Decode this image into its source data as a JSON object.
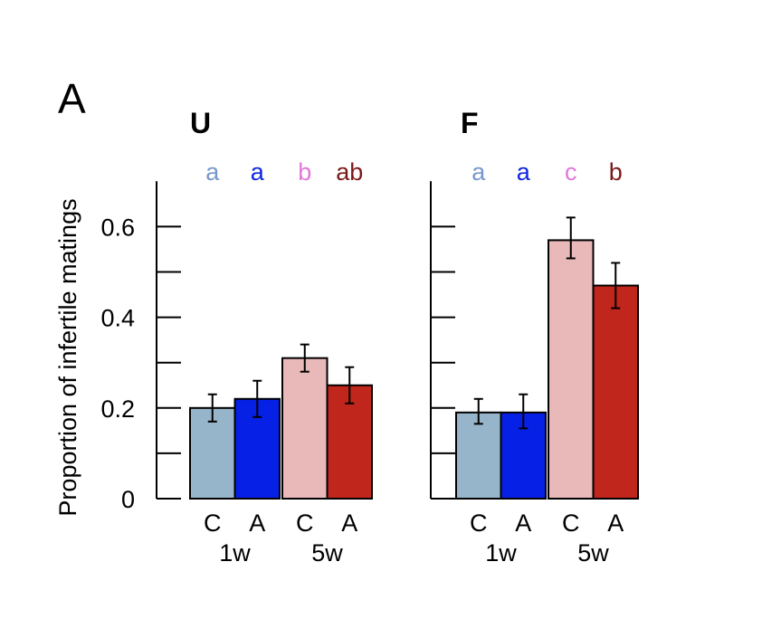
{
  "panel_letter": "A",
  "ylabel": "Proportion of infertile matings",
  "chart_data": [
    {
      "type": "bar",
      "title": "U",
      "categories": [
        "C",
        "A",
        "C",
        "A"
      ],
      "groups": [
        "1w",
        "5w"
      ],
      "values": [
        0.2,
        0.22,
        0.31,
        0.25
      ],
      "error_low": [
        0.17,
        0.18,
        0.28,
        0.21
      ],
      "error_high": [
        0.23,
        0.26,
        0.34,
        0.29
      ],
      "significance_letters": [
        "a",
        "a",
        "b",
        "ab"
      ],
      "bar_colors": [
        "#97b5ca",
        "#0620e6",
        "#e8b9b8",
        "#c0261c"
      ],
      "letter_colors": [
        "#7797cc",
        "#1026e0",
        "#e079d9",
        "#7a1a18"
      ],
      "ylabel": "Proportion of infertile matings",
      "ylim": [
        0,
        0.7
      ],
      "yticks": [
        0,
        0.2,
        0.4,
        0.6
      ],
      "ytick_labels": [
        "0",
        "0.2",
        "0.4",
        "0.6"
      ],
      "grid": false
    },
    {
      "type": "bar",
      "title": "F",
      "categories": [
        "C",
        "A",
        "C",
        "A"
      ],
      "groups": [
        "1w",
        "5w"
      ],
      "values": [
        0.19,
        0.19,
        0.57,
        0.47
      ],
      "error_low": [
        0.165,
        0.155,
        0.53,
        0.42
      ],
      "error_high": [
        0.22,
        0.23,
        0.62,
        0.52
      ],
      "significance_letters": [
        "a",
        "a",
        "c",
        "b"
      ],
      "bar_colors": [
        "#97b5ca",
        "#0620e6",
        "#e8b9b8",
        "#c0261c"
      ],
      "letter_colors": [
        "#7797cc",
        "#1026e0",
        "#e079d9",
        "#7a1a18"
      ],
      "ylim": [
        0,
        0.7
      ],
      "yticks": [
        0,
        0.2,
        0.4,
        0.6
      ],
      "ytick_labels": [
        "",
        "",
        "",
        ""
      ],
      "grid": false
    }
  ]
}
